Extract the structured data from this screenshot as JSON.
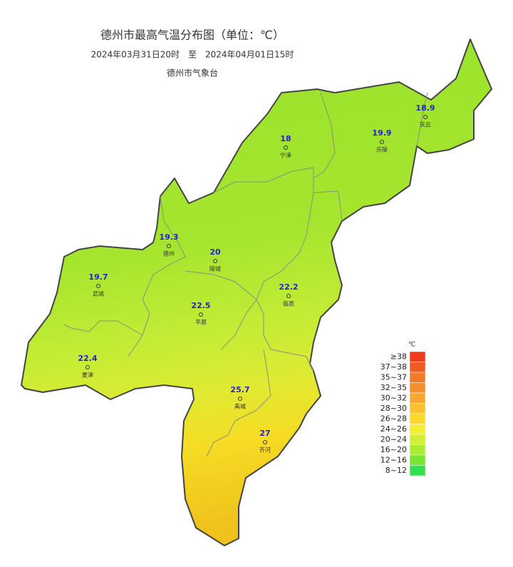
{
  "header": {
    "title": "德州市最高气温分布图（单位：℃）",
    "period": "2024年03月31日20时　至　2024年04月01日15时",
    "source": "德州市气象台"
  },
  "stations": [
    {
      "name": "庆云",
      "value": 18.9
    },
    {
      "name": "乐陵",
      "value": 19.9
    },
    {
      "name": "宁津",
      "value": 18
    },
    {
      "name": "德州",
      "value": 19.3
    },
    {
      "name": "陵城",
      "value": 20
    },
    {
      "name": "武城",
      "value": 19.7
    },
    {
      "name": "临邑",
      "value": 22.2
    },
    {
      "name": "平原",
      "value": 22.5
    },
    {
      "name": "夏津",
      "value": 22.4
    },
    {
      "name": "禹城",
      "value": 25.7
    },
    {
      "name": "齐河",
      "value": 27
    }
  ],
  "legend": {
    "unit": "℃",
    "items": [
      {
        "label": "≥38",
        "color": "#f03a1e"
      },
      {
        "label": "37~38",
        "color": "#f25a24"
      },
      {
        "label": "35~37",
        "color": "#f47a2a"
      },
      {
        "label": "32~35",
        "color": "#f6902e"
      },
      {
        "label": "30~32",
        "color": "#f8a832"
      },
      {
        "label": "28~30",
        "color": "#fac030"
      },
      {
        "label": "26~28",
        "color": "#fcd82c"
      },
      {
        "label": "24~26",
        "color": "#f2ef34"
      },
      {
        "label": "20~24",
        "color": "#d0f038"
      },
      {
        "label": "16~20",
        "color": "#a8ec34"
      },
      {
        "label": "12~16",
        "color": "#78e632"
      },
      {
        "label": "8~12",
        "color": "#30e050"
      }
    ]
  }
}
